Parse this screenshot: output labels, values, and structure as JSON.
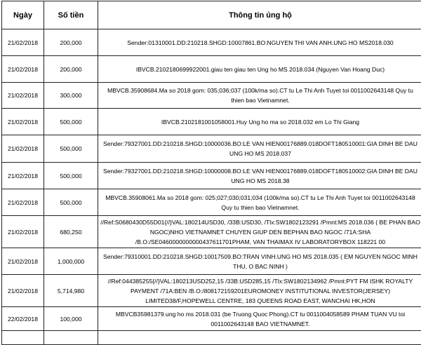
{
  "headers": {
    "date": "Ngày",
    "amount": "Số tiền",
    "info": "Thông tin ủng hộ"
  },
  "rows": [
    {
      "date": "21/02/2018",
      "amount": "200,000",
      "info": "Sender:01310001.DD:210218.SHGD:10007861.BO:NGUYEN THI VAN ANH.UNG HO MS2018.030"
    },
    {
      "date": "21/02/2018",
      "amount": "200,000",
      "info": "IBVCB.2102180699922001.giau ten giau ten Ung ho MS 2018.034 (Nguyen Van Hoang Duc)"
    },
    {
      "date": "21/02/2018",
      "amount": "300,000",
      "info": "MBVCB.35908684.Ma so 2018 gom: 035;036;037 (100k/ma so).CT tu Le Thi Anh Tuyet toi 0011002643148 Quy tu thien bao Vietnamnet."
    },
    {
      "date": "21/02/2018",
      "amount": "500,000",
      "info": "IBVCB.2102181001058001.Huy Ung ho ma so 2018.032 em Lo Thi Giang"
    },
    {
      "date": "21/02/2018",
      "amount": "500,000",
      "info": "Sender:79327001.DD:210218.SHGD:10000036.BO:LE VAN HIEN00176889.018DOFT180510001:GIA DINH BE DAU UNG HO MS 2018.037"
    },
    {
      "date": "21/02/2018",
      "amount": "500,000",
      "info": "Sender:79327001.DD:210218.SHGD:10000008.BO:LE VAN HIEN00176889.018DOFT180510002:GIA DINH BE DAU UNG HO MS 2018.38"
    },
    {
      "date": "21/02/2018",
      "amount": "500,000",
      "info": "MBVCB.35908061.Ma so 2018 gom: 025;027;030;031;034 (100k/ma so).CT tu Le Thi Anh Tuyet toi 0011002643148 Quy tu thien bao Vietnamnet."
    },
    {
      "date": "21/02/2018",
      "amount": "680,250",
      "info": "//Ref:S0680430D55D01{//}VAL:180214USD30, /33B:USD30, /Tlx:SW1802123291 /Pmnt:MS 2018.036 ( BE PHAN BAO NGOC)NHO VIETNAMNET CHUYEN GIUP DEN BEPHAN BAO NGOC /71A:SHA /B.O:/SE0460000000000437611701PHAM, VAN THAIMAX IV LABORATORYBOX 118221 00"
    },
    {
      "date": "21/02/2018",
      "amount": "1,000,000",
      "info": "Sender:79310001.DD:210218.SHGD:10017509.BO:TRAN VINH.UNG HO MS 2018.035 ( EM NGUYEN NGOC MINH THU, O BAC NINH )"
    },
    {
      "date": "21/02/2018",
      "amount": "5,714,980",
      "info": "//Ref:044385255{//}VAL:180213USD252,15 /33B:USD285,15 /Tlx:SW1802134962 /Pmnt:PYT FM ISHK ROYALTY PAYMENT /71A:BEN /B.O:/808172159201EUROMONEY INSTITUTIONAL INVESTOR(JERSEY) LIMITED38/F,HOPEWELL CENTRE, 183 QUEENS ROAD EAST, WANCHAI HK,HON"
    },
    {
      "date": "22/02/2018",
      "amount": "100,000",
      "info": "MBVCB35981379.ung ho ms 2018.031 (be Truong Quoc Phong).CT tu 0011004058589 PHAM TUAN VU toi 0011002643148 BAO VIETNAMNET."
    }
  ]
}
